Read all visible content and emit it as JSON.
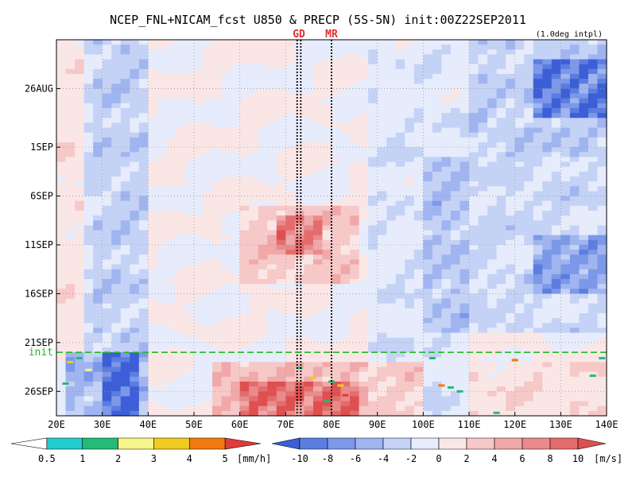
{
  "header": {
    "title": "NCEP_FNL+NICAM_fcst U850 & PRECP (5S-5N) init:00Z22SEP2011",
    "interp_note": "(1.0deg intpl)"
  },
  "chart_data": {
    "type": "heatmap",
    "title": "NCEP_FNL+NICAM_fcst U850 & PRECP (5S-5N) init:00Z22SEP2011",
    "xlabel": "",
    "ylabel": "",
    "x_ticks": [
      "20E",
      "30E",
      "40E",
      "50E",
      "60E",
      "70E",
      "80E",
      "90E",
      "100E",
      "110E",
      "120E",
      "130E",
      "140E"
    ],
    "x_tick_values": [
      20,
      30,
      40,
      50,
      60,
      70,
      80,
      90,
      100,
      110,
      120,
      130,
      140
    ],
    "xlim": [
      20,
      140
    ],
    "y_ticks": [
      "26AUG",
      "1SEP",
      "6SEP",
      "11SEP",
      "16SEP",
      "21SEP",
      "26SEP"
    ],
    "y_tick_values": [
      5,
      11,
      16,
      21,
      26,
      31,
      36
    ],
    "ylim": [
      0,
      38.5
    ],
    "y_note": "time increases downward (days from 22AUG)",
    "grid": true,
    "vertical_markers": [
      {
        "label": "GD",
        "lons": [
          72.5,
          73.3
        ]
      },
      {
        "label": "MR",
        "lons": [
          80
        ]
      }
    ],
    "init_line": {
      "label": "init",
      "y": 32
    },
    "wind_regions": [
      {
        "lon": [
          27,
          40
        ],
        "t": [
          0,
          32
        ],
        "u": -4
      },
      {
        "lon": [
          22,
          40
        ],
        "t": [
          32,
          38.5
        ],
        "u": -6
      },
      {
        "lon": [
          31,
          38
        ],
        "t": [
          32,
          38.5
        ],
        "u": -9
      },
      {
        "lon": [
          60,
          85
        ],
        "t": [
          17,
          25
        ],
        "u": 4
      },
      {
        "lon": [
          68,
          78
        ],
        "t": [
          18,
          22
        ],
        "u": 6
      },
      {
        "lon": [
          55,
          100
        ],
        "t": [
          33,
          38.5
        ],
        "u": 5
      },
      {
        "lon": [
          60,
          85
        ],
        "t": [
          35,
          38.5
        ],
        "u": 7
      },
      {
        "lon": [
          110,
          140
        ],
        "t": [
          0,
          12
        ],
        "u": -4
      },
      {
        "lon": [
          125,
          140
        ],
        "t": [
          2,
          8
        ],
        "u": -8
      },
      {
        "lon": [
          100,
          140
        ],
        "t": [
          12,
          30
        ],
        "u": -3
      },
      {
        "lon": [
          125,
          140
        ],
        "t": [
          20,
          26
        ],
        "u": -5
      },
      {
        "lon": [
          110,
          140
        ],
        "t": [
          33,
          38.5
        ],
        "u": 2
      },
      {
        "lon": [
          20,
          28
        ],
        "t": [
          0,
          30
        ],
        "u": 1.5
      },
      {
        "lon": [
          88,
          110
        ],
        "t": [
          0,
          38.5
        ],
        "u": -2
      }
    ],
    "precip_cells": [
      {
        "lon": 23,
        "t": 33.0,
        "v": 3
      },
      {
        "lon": 25,
        "t": 32.6,
        "v": 1
      },
      {
        "lon": 27,
        "t": 33.8,
        "v": 2
      },
      {
        "lon": 22,
        "t": 35.2,
        "v": 1
      },
      {
        "lon": 73,
        "t": 33.6,
        "v": 1
      },
      {
        "lon": 76,
        "t": 34.6,
        "v": 3
      },
      {
        "lon": 80,
        "t": 35.0,
        "v": 1
      },
      {
        "lon": 82,
        "t": 35.4,
        "v": 3
      },
      {
        "lon": 79,
        "t": 37.0,
        "v": 1
      },
      {
        "lon": 83,
        "t": 36.4,
        "v": 5
      },
      {
        "lon": 104,
        "t": 35.4,
        "v": 4
      },
      {
        "lon": 106,
        "t": 35.6,
        "v": 1
      },
      {
        "lon": 108,
        "t": 36.0,
        "v": 1
      },
      {
        "lon": 116,
        "t": 38.2,
        "v": 1
      },
      {
        "lon": 120,
        "t": 32.8,
        "v": 4
      },
      {
        "lon": 137,
        "t": 34.4,
        "v": 1
      },
      {
        "lon": 139,
        "t": 32.6,
        "v": 1
      },
      {
        "lon": 102,
        "t": 32.6,
        "v": 1
      }
    ],
    "colorbars": [
      {
        "name": "precipitation",
        "units": "[mm/h]",
        "labels": [
          "0.5",
          "1",
          "2",
          "3",
          "4",
          "5"
        ],
        "levels": [
          0.5,
          1,
          2,
          3,
          4,
          5
        ],
        "colors": [
          "#ffffff",
          "#22cccc",
          "#22bb77",
          "#f5f58a",
          "#f0cc22",
          "#f07a10",
          "#e03a3a"
        ]
      },
      {
        "name": "u850",
        "units": "[m/s]",
        "labels": [
          "-10",
          "-8",
          "-6",
          "-4",
          "-2",
          "0",
          "2",
          "4",
          "6",
          "8",
          "10"
        ],
        "levels": [
          -10,
          -8,
          -6,
          -4,
          -2,
          0,
          2,
          4,
          6,
          8,
          10
        ],
        "colors": [
          "#3c5fd8",
          "#5c7de0",
          "#7c98e8",
          "#a0b4f0",
          "#c4d2f6",
          "#e6ecfb",
          "#fbe6e6",
          "#f6c8c8",
          "#f0a8a8",
          "#ea8a8a",
          "#e46c6c",
          "#de5050"
        ]
      }
    ]
  }
}
